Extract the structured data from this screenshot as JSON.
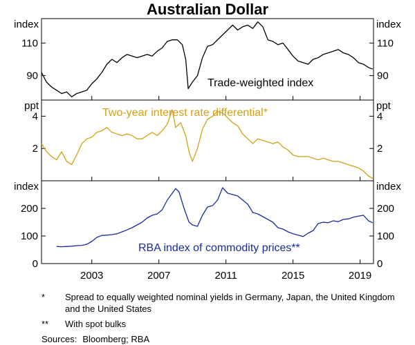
{
  "chart_data": {
    "type": "line",
    "title": "Australian Dollar",
    "x_range": [
      2000,
      2019.8
    ],
    "x_ticks": [
      2003,
      2007,
      2011,
      2015,
      2019
    ],
    "panels": [
      {
        "id": "twi",
        "unit_left": "index",
        "unit_right": "index",
        "ylim": [
          75,
          125
        ],
        "y_ticks": [
          90,
          110
        ],
        "series_name": "Trade-weighted index",
        "color": "#000000",
        "points": [
          [
            2000.0,
            92
          ],
          [
            2000.3,
            86
          ],
          [
            2000.6,
            83
          ],
          [
            2000.9,
            81
          ],
          [
            2001.2,
            79
          ],
          [
            2001.5,
            80
          ],
          [
            2001.8,
            77
          ],
          [
            2002.1,
            79
          ],
          [
            2002.4,
            80
          ],
          [
            2002.7,
            81
          ],
          [
            2003.0,
            85
          ],
          [
            2003.3,
            88
          ],
          [
            2003.6,
            92
          ],
          [
            2003.9,
            97
          ],
          [
            2004.2,
            100
          ],
          [
            2004.5,
            98
          ],
          [
            2004.8,
            101
          ],
          [
            2005.1,
            103
          ],
          [
            2005.4,
            102
          ],
          [
            2005.7,
            101
          ],
          [
            2006.0,
            102
          ],
          [
            2006.3,
            103
          ],
          [
            2006.6,
            102
          ],
          [
            2006.9,
            105
          ],
          [
            2007.2,
            107
          ],
          [
            2007.5,
            111
          ],
          [
            2007.8,
            112
          ],
          [
            2008.1,
            112
          ],
          [
            2008.4,
            109
          ],
          [
            2008.6,
            100
          ],
          [
            2008.75,
            82
          ],
          [
            2009.0,
            86
          ],
          [
            2009.3,
            90
          ],
          [
            2009.6,
            101
          ],
          [
            2009.9,
            108
          ],
          [
            2010.2,
            109
          ],
          [
            2010.5,
            112
          ],
          [
            2010.8,
            115
          ],
          [
            2011.1,
            118
          ],
          [
            2011.4,
            121
          ],
          [
            2011.7,
            118
          ],
          [
            2012.0,
            120
          ],
          [
            2012.3,
            121
          ],
          [
            2012.6,
            119
          ],
          [
            2012.9,
            123
          ],
          [
            2013.2,
            120
          ],
          [
            2013.5,
            112
          ],
          [
            2013.8,
            111
          ],
          [
            2014.1,
            109
          ],
          [
            2014.4,
            110
          ],
          [
            2014.7,
            106
          ],
          [
            2015.0,
            102
          ],
          [
            2015.3,
            99
          ],
          [
            2015.6,
            98
          ],
          [
            2015.9,
            97
          ],
          [
            2016.2,
            100
          ],
          [
            2016.5,
            101
          ],
          [
            2016.8,
            103
          ],
          [
            2017.1,
            104
          ],
          [
            2017.4,
            105
          ],
          [
            2017.7,
            106
          ],
          [
            2018.0,
            104
          ],
          [
            2018.3,
            103
          ],
          [
            2018.6,
            101
          ],
          [
            2018.9,
            98
          ],
          [
            2019.2,
            97
          ],
          [
            2019.5,
            95
          ],
          [
            2019.75,
            94
          ]
        ]
      },
      {
        "id": "ird",
        "unit_left": "ppt",
        "unit_right": "ppt",
        "ylim": [
          0,
          5
        ],
        "y_ticks": [
          2,
          4
        ],
        "series_name": "Two-year interest rate differential*",
        "color": "#d4a014",
        "points": [
          [
            2000.0,
            2.3
          ],
          [
            2000.3,
            1.8
          ],
          [
            2000.6,
            1.5
          ],
          [
            2000.9,
            1.3
          ],
          [
            2001.2,
            1.8
          ],
          [
            2001.5,
            1.2
          ],
          [
            2001.8,
            1.0
          ],
          [
            2002.1,
            1.6
          ],
          [
            2002.4,
            2.3
          ],
          [
            2002.7,
            2.6
          ],
          [
            2003.0,
            2.7
          ],
          [
            2003.3,
            3.0
          ],
          [
            2003.6,
            3.1
          ],
          [
            2003.9,
            3.3
          ],
          [
            2004.2,
            3.0
          ],
          [
            2004.5,
            2.9
          ],
          [
            2004.8,
            2.8
          ],
          [
            2005.1,
            2.9
          ],
          [
            2005.4,
            2.8
          ],
          [
            2005.7,
            2.6
          ],
          [
            2006.0,
            2.6
          ],
          [
            2006.3,
            2.8
          ],
          [
            2006.6,
            3.0
          ],
          [
            2006.9,
            2.8
          ],
          [
            2007.2,
            3.1
          ],
          [
            2007.5,
            3.5
          ],
          [
            2007.8,
            4.4
          ],
          [
            2008.0,
            3.3
          ],
          [
            2008.3,
            3.6
          ],
          [
            2008.6,
            2.8
          ],
          [
            2008.8,
            1.8
          ],
          [
            2009.0,
            1.2
          ],
          [
            2009.3,
            2.0
          ],
          [
            2009.6,
            3.2
          ],
          [
            2009.9,
            3.8
          ],
          [
            2010.2,
            4.0
          ],
          [
            2010.5,
            4.3
          ],
          [
            2010.8,
            4.2
          ],
          [
            2011.1,
            3.9
          ],
          [
            2011.4,
            3.6
          ],
          [
            2011.7,
            3.4
          ],
          [
            2012.0,
            2.9
          ],
          [
            2012.3,
            2.6
          ],
          [
            2012.6,
            2.3
          ],
          [
            2012.9,
            2.6
          ],
          [
            2013.2,
            2.5
          ],
          [
            2013.5,
            2.4
          ],
          [
            2013.8,
            2.3
          ],
          [
            2014.1,
            2.4
          ],
          [
            2014.4,
            2.1
          ],
          [
            2014.7,
            1.9
          ],
          [
            2015.0,
            1.6
          ],
          [
            2015.3,
            1.5
          ],
          [
            2015.6,
            1.5
          ],
          [
            2015.9,
            1.5
          ],
          [
            2016.2,
            1.4
          ],
          [
            2016.5,
            1.3
          ],
          [
            2016.8,
            1.4
          ],
          [
            2017.1,
            1.3
          ],
          [
            2017.4,
            1.2
          ],
          [
            2017.7,
            1.2
          ],
          [
            2018.0,
            1.1
          ],
          [
            2018.3,
            1.0
          ],
          [
            2018.6,
            0.9
          ],
          [
            2018.9,
            0.8
          ],
          [
            2019.2,
            0.6
          ],
          [
            2019.5,
            0.3
          ],
          [
            2019.75,
            0.15
          ]
        ]
      },
      {
        "id": "rba",
        "unit_left": "index",
        "unit_right": "index",
        "ylim": [
          0,
          300
        ],
        "y_ticks": [
          0,
          100,
          200
        ],
        "series_name": "RBA index of commodity prices**",
        "color": "#1a2a9c",
        "points": [
          [
            2000.9,
            62
          ],
          [
            2001.2,
            61
          ],
          [
            2001.5,
            62
          ],
          [
            2001.8,
            63
          ],
          [
            2002.1,
            65
          ],
          [
            2002.4,
            66
          ],
          [
            2002.7,
            70
          ],
          [
            2003.0,
            80
          ],
          [
            2003.3,
            95
          ],
          [
            2003.6,
            102
          ],
          [
            2003.9,
            103
          ],
          [
            2004.2,
            105
          ],
          [
            2004.5,
            108
          ],
          [
            2004.8,
            115
          ],
          [
            2005.1,
            122
          ],
          [
            2005.4,
            130
          ],
          [
            2005.7,
            140
          ],
          [
            2006.0,
            150
          ],
          [
            2006.3,
            165
          ],
          [
            2006.6,
            175
          ],
          [
            2006.9,
            180
          ],
          [
            2007.2,
            195
          ],
          [
            2007.5,
            230
          ],
          [
            2007.8,
            255
          ],
          [
            2008.0,
            272
          ],
          [
            2008.2,
            260
          ],
          [
            2008.5,
            200
          ],
          [
            2008.8,
            150
          ],
          [
            2009.0,
            140
          ],
          [
            2009.3,
            135
          ],
          [
            2009.6,
            175
          ],
          [
            2009.9,
            205
          ],
          [
            2010.2,
            210
          ],
          [
            2010.5,
            230
          ],
          [
            2010.8,
            275
          ],
          [
            2011.1,
            255
          ],
          [
            2011.4,
            250
          ],
          [
            2011.7,
            245
          ],
          [
            2012.0,
            230
          ],
          [
            2012.3,
            215
          ],
          [
            2012.6,
            185
          ],
          [
            2012.9,
            180
          ],
          [
            2013.2,
            170
          ],
          [
            2013.5,
            160
          ],
          [
            2013.8,
            150
          ],
          [
            2014.1,
            130
          ],
          [
            2014.4,
            125
          ],
          [
            2014.7,
            115
          ],
          [
            2015.0,
            108
          ],
          [
            2015.3,
            103
          ],
          [
            2015.6,
            98
          ],
          [
            2015.9,
            110
          ],
          [
            2016.2,
            120
          ],
          [
            2016.5,
            145
          ],
          [
            2016.8,
            150
          ],
          [
            2017.1,
            148
          ],
          [
            2017.4,
            155
          ],
          [
            2017.7,
            152
          ],
          [
            2018.0,
            160
          ],
          [
            2018.3,
            162
          ],
          [
            2018.6,
            168
          ],
          [
            2018.9,
            172
          ],
          [
            2019.2,
            175
          ],
          [
            2019.5,
            155
          ],
          [
            2019.75,
            148
          ]
        ]
      }
    ]
  },
  "notes": {
    "note1_mark": "*",
    "note1_text": "Spread to equally weighted nominal yields in Germany, Japan, the United Kingdom and the United States",
    "note2_mark": "**",
    "note2_text": "With spot bulks",
    "sources_label": "Sources:",
    "sources_text": "Bloomberg; RBA"
  }
}
